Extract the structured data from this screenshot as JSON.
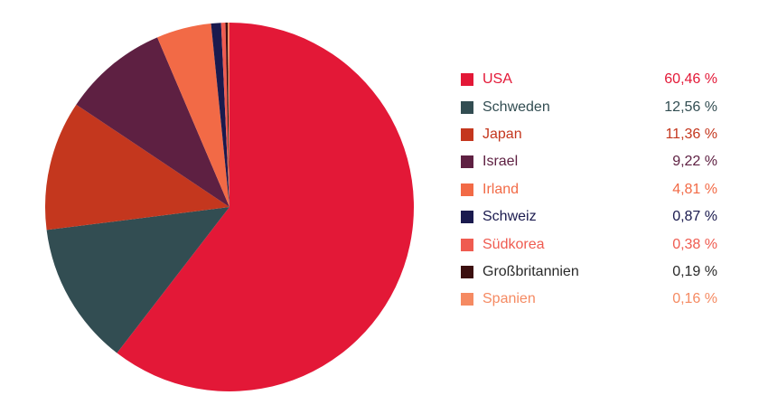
{
  "chart_data": {
    "type": "pie",
    "categories": [
      "USA",
      "Schweden",
      "Japan",
      "Israel",
      "Irland",
      "Schweiz",
      "Südkorea",
      "Großbritannien",
      "Spanien"
    ],
    "values": [
      60.46,
      12.56,
      11.36,
      9.22,
      4.81,
      0.87,
      0.38,
      0.19,
      0.16
    ],
    "value_labels": [
      "60,46 %",
      "12,56 %",
      "11,36 %",
      "9,22 %",
      "4,81 %",
      "0,87 %",
      "0,38 %",
      "0,19 %",
      "0,16 %"
    ],
    "colors": [
      "#e31837",
      "#324d52",
      "#c4371e",
      "#5e2042",
      "#f26a46",
      "#1a1a4e",
      "#ef5b50",
      "#3b0f0f",
      "#f58a62"
    ],
    "text_colors": [
      "#e31837",
      "#324d52",
      "#c4371e",
      "#5e2042",
      "#f26a46",
      "#1a1a4e",
      "#ef5b50",
      "#3b0f0f",
      "#f58a62"
    ],
    "label_colors": [
      "#e31837",
      "#324d52",
      "#c4371e",
      "#5e2042",
      "#f26a46",
      "#1a1a4e",
      "#ef5b50",
      "#2a2a2a",
      "#f58a62"
    ],
    "legend_position": "right",
    "start_angle": "top",
    "direction": "clockwise"
  }
}
